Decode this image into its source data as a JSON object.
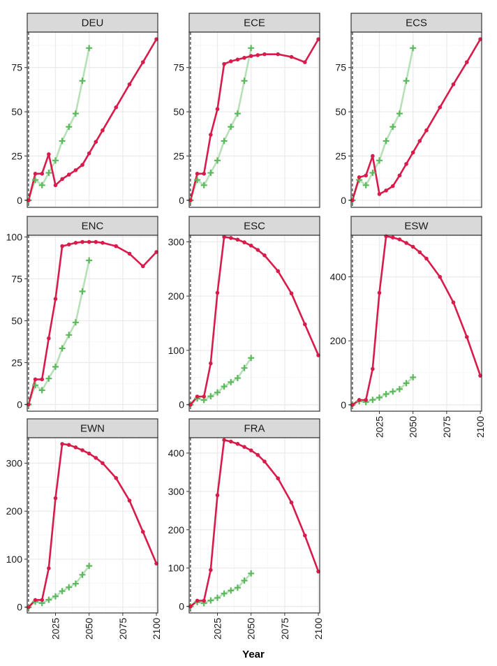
{
  "figure": {
    "xlabel": "Year",
    "x_ticks": [
      2025,
      2050,
      2075,
      2100
    ],
    "x_tick_labels": [
      "2025",
      "2050",
      "2075",
      "2100"
    ],
    "reference_year": 2005
  },
  "colors": {
    "series_red": "#d81b4a",
    "series_green_line": "#b8e0b8",
    "series_green_marker": "#5cb85c",
    "strip_bg": "#d9d9d9",
    "grid_major": "#ebebeb",
    "grid_minor": "#f5f5f5",
    "border": "#333333"
  },
  "chart_data": [
    {
      "type": "line",
      "panel": "DEU",
      "xlim": [
        2004,
        2101
      ],
      "ylim": [
        -4,
        95
      ],
      "y_ticks": [
        0,
        25,
        50,
        75
      ],
      "y_tick_labels": [
        "0",
        "25",
        "50",
        "75"
      ],
      "show_x_axis": false,
      "series": [
        {
          "name": "red",
          "x": [
            2005,
            2010,
            2015,
            2020,
            2025,
            2030,
            2035,
            2040,
            2045,
            2050,
            2055,
            2060,
            2070,
            2080,
            2090,
            2100
          ],
          "values": [
            0,
            15,
            15,
            26,
            8.5,
            12,
            14.5,
            17,
            20,
            26.5,
            33,
            39.5,
            52.5,
            65.5,
            78,
            91
          ]
        },
        {
          "name": "green",
          "x": [
            2005,
            2010,
            2015,
            2020,
            2025,
            2030,
            2035,
            2040,
            2045,
            2050
          ],
          "values": [
            0,
            11.5,
            8.5,
            15.5,
            22.5,
            33.5,
            41.5,
            49,
            67.5,
            86
          ]
        }
      ]
    },
    {
      "type": "line",
      "panel": "ECE",
      "xlim": [
        2004,
        2101
      ],
      "ylim": [
        -4,
        95
      ],
      "y_ticks": [
        0,
        25,
        50,
        75
      ],
      "y_tick_labels": [
        "0",
        "25",
        "50",
        "75"
      ],
      "show_x_axis": false,
      "series": [
        {
          "name": "red",
          "x": [
            2005,
            2010,
            2015,
            2020,
            2025,
            2030,
            2035,
            2040,
            2045,
            2050,
            2055,
            2060,
            2070,
            2080,
            2090,
            2100
          ],
          "values": [
            0,
            15,
            15,
            37,
            51.5,
            77,
            78.5,
            79.5,
            80.5,
            81.5,
            82,
            82.5,
            82.5,
            81,
            78,
            91
          ]
        },
        {
          "name": "green",
          "x": [
            2005,
            2010,
            2015,
            2020,
            2025,
            2030,
            2035,
            2040,
            2045,
            2050
          ],
          "values": [
            0,
            11.5,
            8.5,
            15.5,
            22.5,
            33.5,
            41.5,
            49,
            67.5,
            86
          ]
        }
      ]
    },
    {
      "type": "line",
      "panel": "ECS",
      "xlim": [
        2004,
        2101
      ],
      "ylim": [
        -4,
        95
      ],
      "y_ticks": [
        0,
        25,
        50,
        75
      ],
      "y_tick_labels": [
        "0",
        "25",
        "50",
        "75"
      ],
      "show_x_axis": false,
      "series": [
        {
          "name": "red",
          "x": [
            2005,
            2010,
            2015,
            2020,
            2025,
            2030,
            2035,
            2040,
            2045,
            2050,
            2055,
            2060,
            2070,
            2080,
            2090,
            2100
          ],
          "values": [
            0,
            13,
            14,
            25,
            3.5,
            5.5,
            8,
            14,
            20.5,
            27,
            33.5,
            39.5,
            52.5,
            65.5,
            78,
            91
          ]
        },
        {
          "name": "green",
          "x": [
            2005,
            2010,
            2015,
            2020,
            2025,
            2030,
            2035,
            2040,
            2045,
            2050
          ],
          "values": [
            0,
            11.5,
            8.5,
            15.5,
            22.5,
            33.5,
            41.5,
            49,
            67.5,
            86
          ]
        }
      ]
    },
    {
      "type": "line",
      "panel": "ENC",
      "xlim": [
        2004,
        2101
      ],
      "ylim": [
        -4,
        101
      ],
      "y_ticks": [
        0,
        25,
        50,
        75,
        100
      ],
      "y_tick_labels": [
        "0",
        "25",
        "50",
        "75",
        "100"
      ],
      "show_x_axis": false,
      "series": [
        {
          "name": "red",
          "x": [
            2005,
            2010,
            2015,
            2020,
            2025,
            2030,
            2035,
            2040,
            2045,
            2050,
            2055,
            2060,
            2070,
            2080,
            2090,
            2100
          ],
          "values": [
            0,
            15,
            15,
            39.5,
            63,
            94.5,
            95.5,
            96.5,
            97,
            97,
            97,
            96.5,
            94.5,
            90,
            82.5,
            91
          ]
        },
        {
          "name": "green",
          "x": [
            2005,
            2010,
            2015,
            2020,
            2025,
            2030,
            2035,
            2040,
            2045,
            2050
          ],
          "values": [
            0,
            11.5,
            8.5,
            15.5,
            22.5,
            33.5,
            41.5,
            49,
            67.5,
            86
          ]
        }
      ]
    },
    {
      "type": "line",
      "panel": "ESC",
      "xlim": [
        2004,
        2101
      ],
      "ylim": [
        -12,
        312
      ],
      "y_ticks": [
        0,
        100,
        200,
        300
      ],
      "y_tick_labels": [
        "0",
        "100",
        "200",
        "300"
      ],
      "show_x_axis": false,
      "series": [
        {
          "name": "red",
          "x": [
            2005,
            2010,
            2015,
            2020,
            2025,
            2030,
            2035,
            2040,
            2045,
            2050,
            2055,
            2060,
            2070,
            2080,
            2090,
            2100
          ],
          "values": [
            0,
            15,
            15,
            76,
            206,
            309,
            307,
            304,
            299,
            293,
            285,
            275,
            246,
            205,
            148,
            91
          ]
        },
        {
          "name": "green",
          "x": [
            2005,
            2010,
            2015,
            2020,
            2025,
            2030,
            2035,
            2040,
            2045,
            2050
          ],
          "values": [
            0,
            11.5,
            8.5,
            15.5,
            22.5,
            33.5,
            41.5,
            49,
            67.5,
            86
          ]
        }
      ]
    },
    {
      "type": "line",
      "panel": "ESW",
      "xlim": [
        2004,
        2101
      ],
      "ylim": [
        -20,
        530
      ],
      "y_ticks": [
        0,
        200,
        400
      ],
      "y_tick_labels": [
        "0",
        "200",
        "400"
      ],
      "show_x_axis": true,
      "series": [
        {
          "name": "red",
          "x": [
            2005,
            2010,
            2015,
            2020,
            2025,
            2030,
            2035,
            2040,
            2045,
            2050,
            2055,
            2060,
            2070,
            2080,
            2090,
            2100
          ],
          "values": [
            0,
            15,
            15,
            112,
            350,
            527,
            523,
            517,
            506,
            494,
            477,
            457,
            400,
            320,
            212,
            91
          ]
        },
        {
          "name": "green",
          "x": [
            2005,
            2010,
            2015,
            2020,
            2025,
            2030,
            2035,
            2040,
            2045,
            2050
          ],
          "values": [
            0,
            11.5,
            8.5,
            15.5,
            22.5,
            33.5,
            41.5,
            49,
            67.5,
            86
          ]
        }
      ]
    },
    {
      "type": "line",
      "panel": "EWN",
      "xlim": [
        2004,
        2101
      ],
      "ylim": [
        -12,
        353
      ],
      "y_ticks": [
        0,
        100,
        200,
        300
      ],
      "y_tick_labels": [
        "0",
        "100",
        "200",
        "300"
      ],
      "show_x_axis": true,
      "series": [
        {
          "name": "red",
          "x": [
            2005,
            2010,
            2015,
            2020,
            2025,
            2030,
            2035,
            2040,
            2045,
            2050,
            2055,
            2060,
            2070,
            2080,
            2090,
            2100
          ],
          "values": [
            0,
            15,
            15,
            81,
            227,
            340,
            338,
            333,
            327,
            320,
            311,
            300,
            269,
            222,
            157,
            91
          ]
        },
        {
          "name": "green",
          "x": [
            2005,
            2010,
            2015,
            2020,
            2025,
            2030,
            2035,
            2040,
            2045,
            2050
          ],
          "values": [
            0,
            11.5,
            8.5,
            15.5,
            22.5,
            33.5,
            41.5,
            49,
            67.5,
            86
          ]
        }
      ]
    },
    {
      "type": "line",
      "panel": "FRA",
      "xlim": [
        2004,
        2101
      ],
      "ylim": [
        -17,
        440
      ],
      "y_ticks": [
        0,
        100,
        200,
        300,
        400
      ],
      "y_tick_labels": [
        "0",
        "100",
        "200",
        "300",
        "400"
      ],
      "show_x_axis": true,
      "series": [
        {
          "name": "red",
          "x": [
            2005,
            2010,
            2015,
            2020,
            2025,
            2030,
            2035,
            2040,
            2045,
            2050,
            2055,
            2060,
            2070,
            2080,
            2090,
            2100
          ],
          "values": [
            0,
            15,
            15,
            95,
            290,
            434,
            430,
            424,
            416,
            407,
            395,
            378,
            334,
            271,
            185,
            91
          ]
        },
        {
          "name": "green",
          "x": [
            2005,
            2010,
            2015,
            2020,
            2025,
            2030,
            2035,
            2040,
            2045,
            2050
          ],
          "values": [
            0,
            11.5,
            8.5,
            15.5,
            22.5,
            33.5,
            41.5,
            49,
            67.5,
            86
          ]
        }
      ]
    }
  ]
}
